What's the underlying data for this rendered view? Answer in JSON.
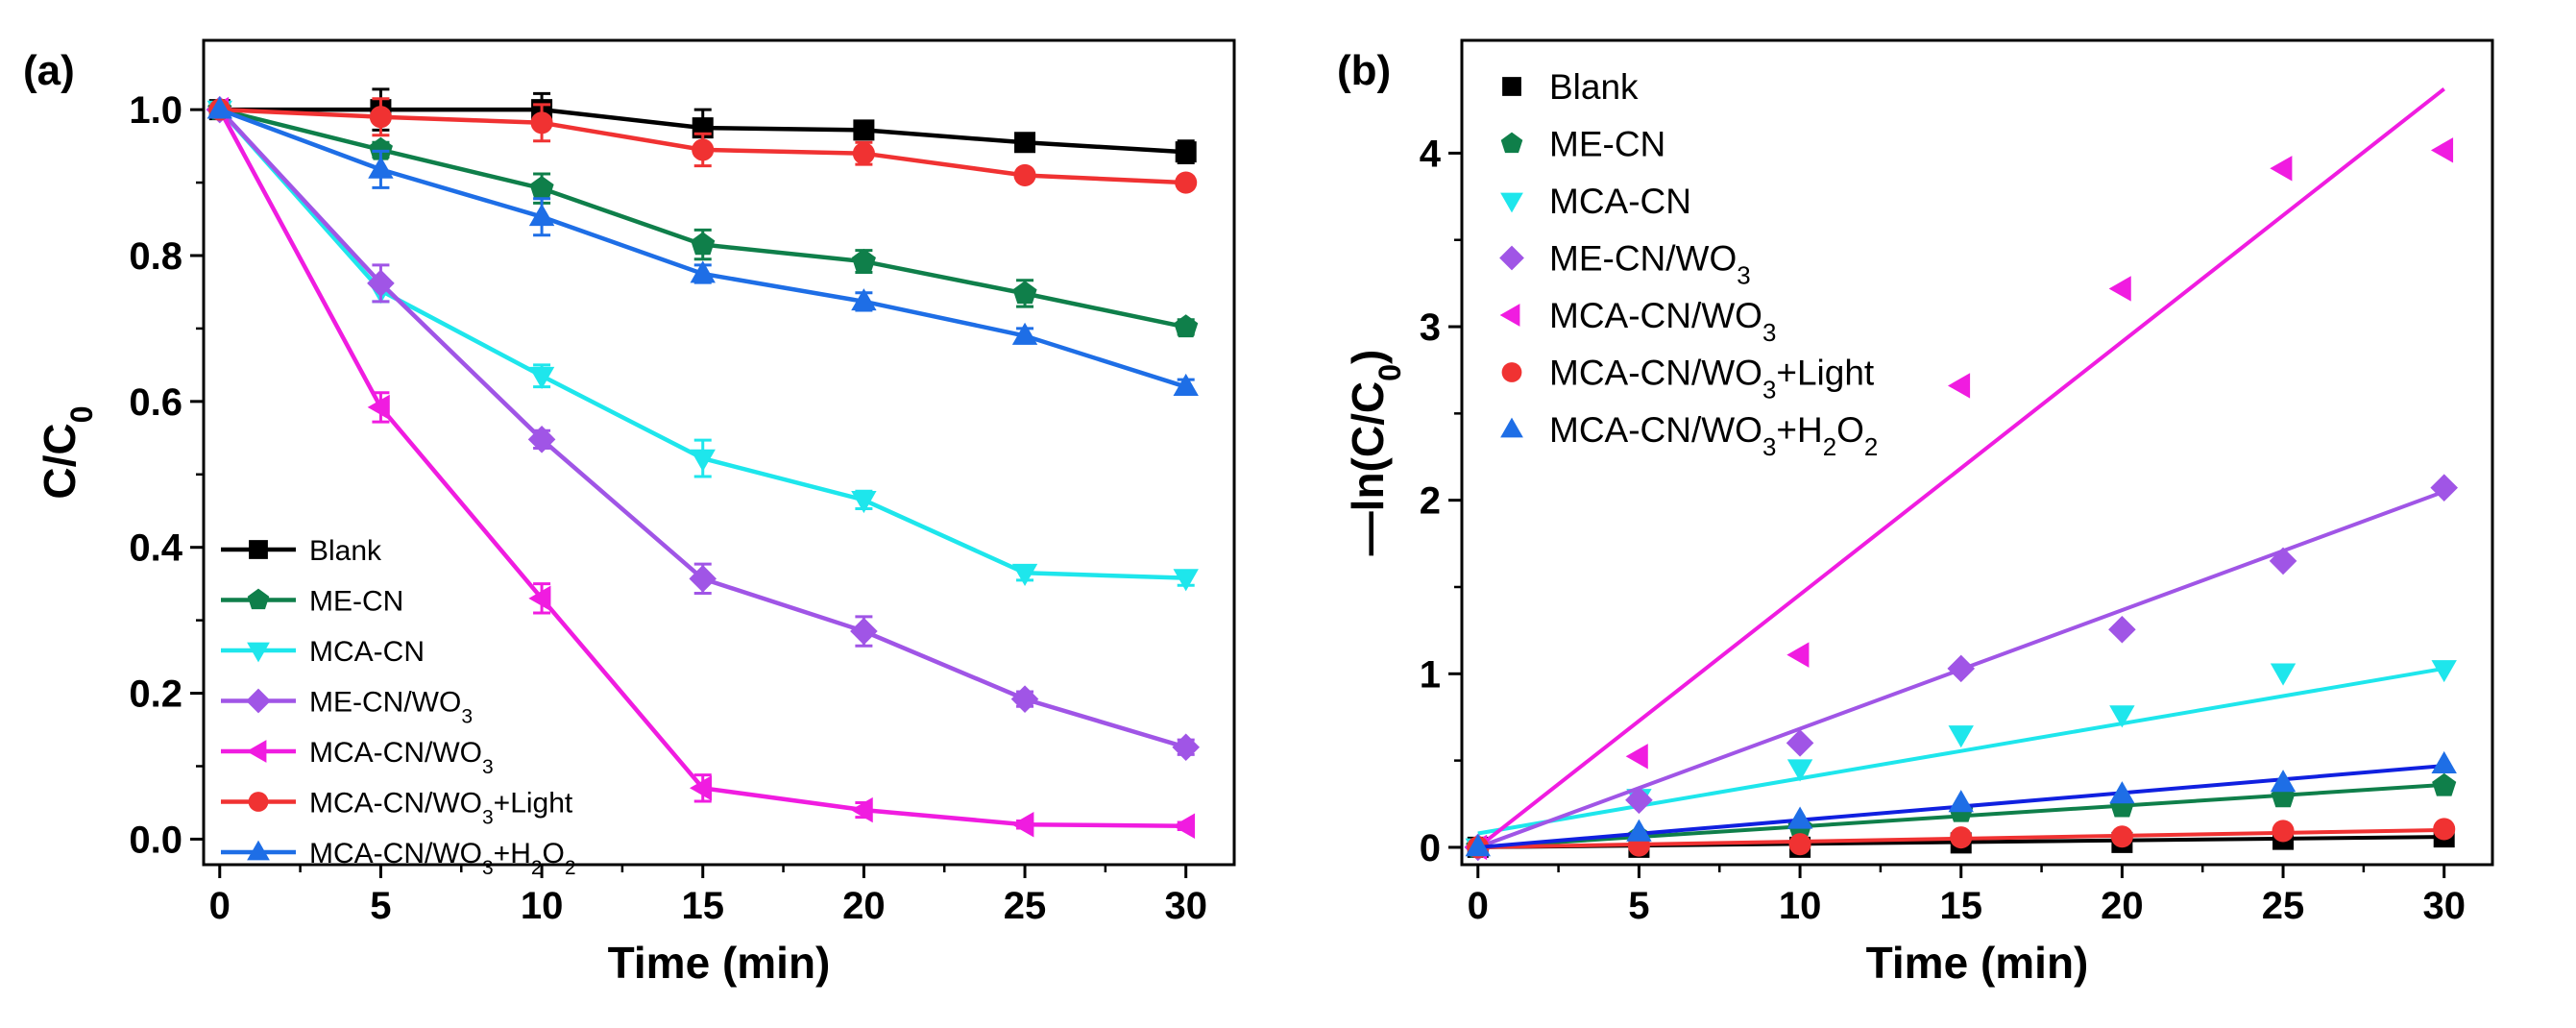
{
  "chart_data": [
    {
      "type": "line",
      "panel_label": "(a)",
      "xlabel": "Time (min)",
      "ylabel": "C/C",
      "ylabel_sub": "0",
      "xlim": [
        -0.5,
        31.5
      ],
      "ylim": [
        -0.035,
        1.095
      ],
      "xticks": [
        0,
        5,
        10,
        15,
        20,
        25,
        30
      ],
      "yticks": [
        0.0,
        0.2,
        0.4,
        0.6,
        0.8,
        1.0
      ],
      "ytick_labels": [
        "0.0",
        "0.2",
        "0.4",
        "0.6",
        "0.8",
        "1.0"
      ],
      "legend_position": "bottom-left",
      "x": [
        0,
        5,
        10,
        15,
        20,
        25,
        30
      ],
      "series": [
        {
          "name": "Blank",
          "name_sub": "",
          "name_rest": "",
          "name_sub2": "",
          "marker": "square",
          "color": "#000000",
          "values": [
            1.0,
            1.0,
            1.0,
            0.975,
            0.972,
            0.955,
            0.942
          ],
          "errors": [
            0,
            0.028,
            0.022,
            0.025,
            0.01,
            0.01,
            0.015
          ]
        },
        {
          "name": "ME-CN",
          "name_sub": "",
          "name_rest": "",
          "name_sub2": "",
          "marker": "pentagon",
          "color": "#0f7f4a",
          "values": [
            1.0,
            0.945,
            0.892,
            0.815,
            0.792,
            0.748,
            0.702
          ],
          "errors": [
            0,
            0.01,
            0.02,
            0.02,
            0.015,
            0.018,
            0.01
          ]
        },
        {
          "name": "MCA-CN",
          "name_sub": "",
          "name_rest": "",
          "name_sub2": "",
          "marker": "triangle-down",
          "color": "#1ee6ec",
          "values": [
            1.0,
            0.752,
            0.635,
            0.522,
            0.465,
            0.365,
            0.358
          ],
          "errors": [
            0,
            0.015,
            0.015,
            0.025,
            0.012,
            0.01,
            0.01
          ]
        },
        {
          "name": "ME-CN/WO",
          "name_sub": "3",
          "name_rest": "",
          "name_sub2": "",
          "marker": "diamond",
          "color": "#a055e6",
          "values": [
            1.0,
            0.762,
            0.548,
            0.357,
            0.285,
            0.192,
            0.126
          ],
          "errors": [
            0,
            0.025,
            0.012,
            0.02,
            0.02,
            0.01,
            0.01
          ]
        },
        {
          "name": "MCA-CN/WO",
          "name_sub": "3",
          "name_rest": "",
          "name_sub2": "",
          "marker": "triangle-left",
          "color": "#f01ce0",
          "values": [
            1.0,
            0.592,
            0.33,
            0.07,
            0.04,
            0.02,
            0.018
          ],
          "errors": [
            0,
            0.02,
            0.02,
            0.018,
            0.01,
            0.005,
            0.005
          ]
        },
        {
          "name": "MCA-CN/WO",
          "name_sub": "3",
          "name_rest": "+Light",
          "name_sub2": "",
          "marker": "circle",
          "color": "#f03232",
          "values": [
            1.0,
            0.99,
            0.982,
            0.945,
            0.94,
            0.91,
            0.9
          ],
          "errors": [
            0,
            0.025,
            0.025,
            0.022,
            0.015,
            0.008,
            0.008
          ]
        },
        {
          "name": "MCA-CN/WO",
          "name_sub": "3",
          "name_rest": "+H",
          "name_sub2": "2",
          "name_rest2": "O",
          "name_sub3": "2",
          "marker": "triangle-up",
          "color": "#1e6ee6",
          "values": [
            1.0,
            0.918,
            0.853,
            0.775,
            0.737,
            0.69,
            0.62
          ],
          "errors": [
            0,
            0.025,
            0.025,
            0.012,
            0.012,
            0.01,
            0.01
          ]
        }
      ]
    },
    {
      "type": "scatter",
      "panel_label": "(b)",
      "xlabel": "Time (min)",
      "ylabel": "—ln(C/C",
      "ylabel_sub": "0",
      "ylabel_end": ")",
      "xlim": [
        -0.5,
        31.5
      ],
      "ylim": [
        -0.1,
        4.65
      ],
      "xticks": [
        0,
        5,
        10,
        15,
        20,
        25,
        30
      ],
      "yticks": [
        0,
        1,
        2,
        3,
        4
      ],
      "ytick_labels": [
        "0",
        "1",
        "2",
        "3",
        "4"
      ],
      "legend_position": "top-left",
      "x": [
        0,
        5,
        10,
        15,
        20,
        25,
        30
      ],
      "series": [
        {
          "name": "Blank",
          "name_sub": "",
          "name_rest": "",
          "name_sub2": "",
          "marker": "square",
          "color": "#000000",
          "values": [
            0,
            0.0,
            0.0,
            0.025,
            0.028,
            0.046,
            0.06
          ],
          "fit": [
            0,
            0.06
          ]
        },
        {
          "name": "ME-CN",
          "name_sub": "",
          "name_rest": "",
          "name_sub2": "",
          "marker": "pentagon",
          "color": "#0f7f4a",
          "values": [
            0,
            0.057,
            0.114,
            0.205,
            0.233,
            0.29,
            0.354
          ],
          "fit": [
            0,
            0.36
          ]
        },
        {
          "name": "MCA-CN",
          "name_sub": "",
          "name_rest": "",
          "name_sub2": "",
          "marker": "triangle-down",
          "color": "#1ee6ec",
          "values": [
            0,
            0.285,
            0.455,
            0.65,
            0.766,
            1.008,
            1.027
          ],
          "fit": [
            0.08,
            1.03
          ]
        },
        {
          "name": "ME-CN/WO",
          "name_sub": "3",
          "name_rest": "",
          "name_sub2": "",
          "marker": "diamond",
          "color": "#a055e6",
          "values": [
            0,
            0.272,
            0.601,
            1.03,
            1.255,
            1.65,
            2.072
          ],
          "fit": [
            0,
            2.05
          ]
        },
        {
          "name": "MCA-CN/WO",
          "name_sub": "3",
          "name_rest": "",
          "name_sub2": "",
          "marker": "triangle-left",
          "color": "#f01ce0",
          "values": [
            0,
            0.524,
            1.109,
            2.66,
            3.219,
            3.912,
            4.017
          ],
          "fit": [
            0,
            4.37
          ]
        },
        {
          "name": "MCA-CN/WO",
          "name_sub": "3",
          "name_rest": "+Light",
          "name_sub2": "",
          "marker": "circle",
          "color": "#f03232",
          "values": [
            0,
            0.01,
            0.018,
            0.057,
            0.062,
            0.094,
            0.105
          ],
          "fit": [
            0,
            0.1
          ]
        },
        {
          "name": "MCA-CN/WO",
          "name_sub": "3",
          "name_rest": "+H",
          "name_sub2": "2",
          "name_rest2": "O",
          "name_sub3": "2",
          "marker": "triangle-up",
          "color": "#1e6ee6",
          "values": [
            0,
            0.086,
            0.159,
            0.255,
            0.305,
            0.371,
            0.478
          ],
          "fit": [
            0,
            0.47
          ]
        }
      ]
    }
  ]
}
